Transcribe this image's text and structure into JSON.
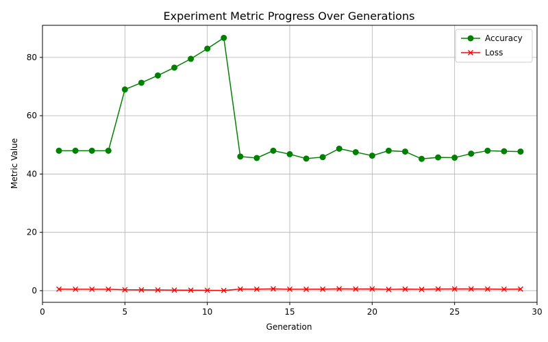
{
  "chart_data": {
    "type": "line",
    "title": "Experiment Metric Progress Over Generations",
    "xlabel": "Generation",
    "ylabel": "Metric Value",
    "xlim": [
      0,
      30
    ],
    "ylim": [
      -4,
      91
    ],
    "xticks": [
      0,
      5,
      10,
      15,
      20,
      25,
      30
    ],
    "yticks": [
      0,
      20,
      40,
      60,
      80
    ],
    "grid": true,
    "legend_position": "top-right",
    "x": [
      1,
      2,
      3,
      4,
      5,
      6,
      7,
      8,
      9,
      10,
      11,
      12,
      13,
      14,
      15,
      16,
      17,
      18,
      19,
      20,
      21,
      22,
      23,
      24,
      25,
      26,
      27,
      28,
      29
    ],
    "series": [
      {
        "name": "Accuracy",
        "color": "#008000",
        "marker": "circle",
        "values": [
          48.0,
          48.0,
          48.0,
          48.0,
          69.0,
          71.3,
          73.8,
          76.5,
          79.5,
          83.0,
          86.7,
          46.0,
          45.5,
          48.0,
          46.8,
          45.3,
          45.8,
          48.7,
          47.5,
          46.3,
          48.0,
          47.7,
          45.2,
          45.7,
          45.6,
          47.0,
          48.0,
          47.8,
          47.7
        ]
      },
      {
        "name": "Loss",
        "color": "#ff0000",
        "marker": "x",
        "values": [
          0.52,
          0.5,
          0.5,
          0.48,
          0.3,
          0.27,
          0.24,
          0.2,
          0.16,
          0.12,
          0.08,
          0.54,
          0.52,
          0.62,
          0.5,
          0.48,
          0.51,
          0.62,
          0.58,
          0.6,
          0.44,
          0.55,
          0.46,
          0.58,
          0.6,
          0.6,
          0.58,
          0.5,
          0.55
        ]
      }
    ]
  }
}
